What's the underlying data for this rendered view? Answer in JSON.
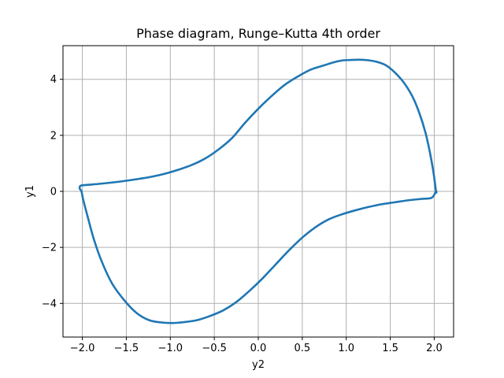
{
  "chart_data": {
    "type": "line",
    "title": "Phase diagram, Runge–Kutta 4th order",
    "xlabel": "y2",
    "ylabel": "y1",
    "xlim": [
      -2.22,
      2.22
    ],
    "ylim": [
      -5.2,
      5.2
    ],
    "xticks": [
      -2.0,
      -1.5,
      -1.0,
      -0.5,
      0.0,
      0.5,
      1.0,
      1.5,
      2.0
    ],
    "xtick_labels": [
      "−2.0",
      "−1.5",
      "−1.0",
      "−0.5",
      "0.0",
      "0.5",
      "1.0",
      "1.5",
      "2.0"
    ],
    "yticks": [
      -4,
      -2,
      0,
      2,
      4
    ],
    "ytick_labels": [
      "−4",
      "−2",
      "0",
      "2",
      "4"
    ],
    "grid": true,
    "color": "#1f77b4",
    "series": [
      {
        "x": [
          2.02,
          1.99,
          1.95,
          1.9,
          1.83,
          1.75,
          1.65,
          1.55,
          1.45,
          1.35,
          1.25,
          1.15,
          1.05,
          0.95,
          0.85,
          0.75,
          0.6,
          0.45,
          0.3,
          0.15,
          0.0,
          -0.15,
          -0.3,
          -0.45,
          -0.6,
          -0.75,
          -0.9,
          -1.05,
          -1.2,
          -1.35,
          -1.5,
          -1.65,
          -1.8,
          -1.95,
          -2.02,
          -2.03,
          -2.01,
          -1.99,
          -1.94,
          -1.87,
          -1.78,
          -1.66,
          -1.52,
          -1.38,
          -1.24,
          -1.1,
          -0.98,
          -0.85,
          -0.7,
          -0.55,
          -0.4,
          -0.25,
          -0.1,
          0.05,
          0.2,
          0.35,
          0.5,
          0.65,
          0.8,
          0.95,
          1.1,
          1.25,
          1.4,
          1.55,
          1.7,
          1.85,
          1.97,
          2.02
        ],
        "y": [
          0.0,
          0.7,
          1.4,
          2.1,
          2.8,
          3.4,
          3.9,
          4.25,
          4.5,
          4.62,
          4.68,
          4.7,
          4.69,
          4.67,
          4.6,
          4.5,
          4.35,
          4.1,
          3.8,
          3.4,
          2.95,
          2.45,
          1.9,
          1.5,
          1.18,
          0.95,
          0.78,
          0.64,
          0.53,
          0.45,
          0.38,
          0.32,
          0.27,
          0.23,
          0.2,
          0.1,
          0.0,
          -0.3,
          -0.9,
          -1.7,
          -2.5,
          -3.3,
          -3.9,
          -4.35,
          -4.6,
          -4.68,
          -4.7,
          -4.67,
          -4.6,
          -4.45,
          -4.25,
          -3.95,
          -3.55,
          -3.1,
          -2.6,
          -2.1,
          -1.65,
          -1.28,
          -1.0,
          -0.82,
          -0.68,
          -0.56,
          -0.46,
          -0.39,
          -0.32,
          -0.27,
          -0.23,
          0.0
        ]
      }
    ]
  }
}
